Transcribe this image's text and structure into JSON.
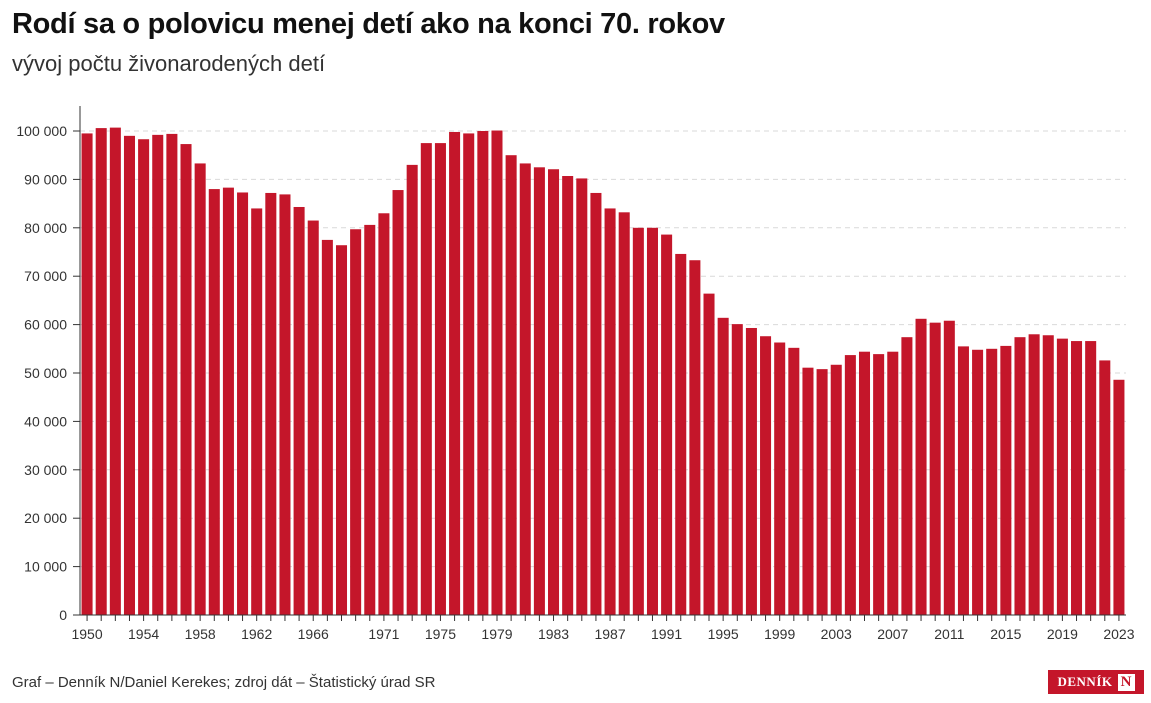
{
  "title": "Rodí sa o polovicu menej detí ako na konci 70. rokov",
  "subtitle": "vývoj počtu živonarodených detí",
  "source": "Graf – Denník N/Daniel Kerekes; zdroj dát – Štatistický úrad SR",
  "logo": {
    "text": "DENNÍK",
    "mark": "N"
  },
  "colors": {
    "bar": "#c4162a",
    "grid": "#d9d9d9",
    "axis": "#333333"
  },
  "chart_data": {
    "type": "bar",
    "title": "Rodí sa o polovicu menej detí ako na konci 70. rokov",
    "subtitle": "vývoj počtu živonarodených detí",
    "xlabel": "",
    "ylabel": "",
    "ylim": [
      0,
      100000
    ],
    "yticks": [
      0,
      10000,
      20000,
      30000,
      40000,
      50000,
      60000,
      70000,
      80000,
      90000,
      100000
    ],
    "ytick_labels": [
      "0",
      "10 000",
      "20 000",
      "30 000",
      "40 000",
      "50 000",
      "60 000",
      "70 000",
      "80 000",
      "90 000",
      "100 000"
    ],
    "xtick_labels": [
      "1950",
      "1954",
      "1958",
      "1962",
      "1966",
      "1971",
      "1975",
      "1979",
      "1983",
      "1987",
      "1991",
      "1995",
      "1999",
      "2003",
      "2007",
      "2011",
      "2015",
      "2019",
      "2023"
    ],
    "grid": true,
    "categories": [
      1950,
      1951,
      1952,
      1953,
      1954,
      1955,
      1956,
      1957,
      1958,
      1959,
      1960,
      1961,
      1962,
      1963,
      1964,
      1965,
      1966,
      1967,
      1968,
      1969,
      1970,
      1971,
      1972,
      1973,
      1974,
      1975,
      1976,
      1977,
      1978,
      1979,
      1980,
      1981,
      1982,
      1983,
      1984,
      1985,
      1986,
      1987,
      1988,
      1989,
      1990,
      1991,
      1992,
      1993,
      1994,
      1995,
      1996,
      1997,
      1998,
      1999,
      2000,
      2001,
      2002,
      2003,
      2004,
      2005,
      2006,
      2007,
      2008,
      2009,
      2010,
      2011,
      2012,
      2013,
      2014,
      2015,
      2016,
      2017,
      2018,
      2019,
      2020,
      2021,
      2022,
      2023
    ],
    "values": [
      99500,
      100600,
      100700,
      99000,
      98300,
      99200,
      99400,
      97300,
      93300,
      88000,
      88300,
      87300,
      84000,
      87200,
      86900,
      84300,
      81500,
      77500,
      76400,
      79700,
      80600,
      83000,
      87800,
      93000,
      97500,
      97500,
      99800,
      99500,
      100000,
      100100,
      95000,
      93300,
      92500,
      92100,
      90700,
      90200,
      87200,
      84000,
      83200,
      80000,
      80000,
      78600,
      74600,
      73300,
      66400,
      61400,
      60100,
      59300,
      57600,
      56300,
      55200,
      51100,
      50800,
      51700,
      53700,
      54400,
      53900,
      54400,
      57400,
      61200,
      60400,
      60800,
      55500,
      54800,
      55000,
      55600,
      57400,
      58000,
      57800,
      57100,
      56600,
      56600,
      52600,
      48600
    ]
  }
}
